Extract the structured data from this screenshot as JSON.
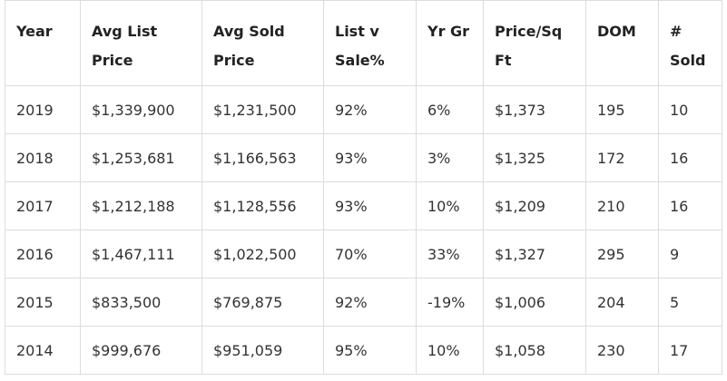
{
  "table": {
    "header": [
      "Year",
      "Avg List Price",
      "Avg Sold Price",
      "List v Sale%",
      "Yr Gr",
      "Price/Sq Ft",
      "DOM",
      "# Sold"
    ],
    "rows": [
      [
        "2019",
        "$1,339,900",
        "$1,231,500",
        "92%",
        "6%",
        "$1,373",
        "195",
        "10"
      ],
      [
        "2018",
        "$1,253,681",
        "$1,166,563",
        "93%",
        "3%",
        "$1,325",
        "172",
        "16"
      ],
      [
        "2017",
        "$1,212,188",
        "$1,128,556",
        "93%",
        "10%",
        "$1,209",
        "210",
        "16"
      ],
      [
        "2016",
        "$1,467,111",
        "$1,022,500",
        "70%",
        "33%",
        "$1,327",
        "295",
        "9"
      ],
      [
        "2015",
        "$833,500",
        "$769,875",
        "92%",
        "-19%",
        "$1,006",
        "204",
        "5"
      ],
      [
        "2014",
        "$999,676",
        "$951,059",
        "95%",
        "10%",
        "$1,058",
        "230",
        "17"
      ]
    ]
  }
}
